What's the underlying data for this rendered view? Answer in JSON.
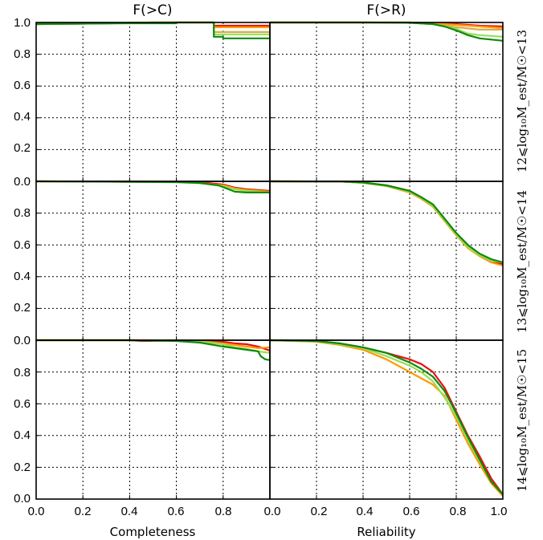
{
  "chart_data": {
    "type": "line",
    "columns": [
      {
        "title": "F(>C)",
        "xlabel": "Completeness"
      },
      {
        "title": "F(>R)",
        "xlabel": "Reliability"
      }
    ],
    "row_labels": [
      "12⩽log₁₀M_est/M☉<13",
      "13⩽log₁₀M_est/M☉<14",
      "14⩽log₁₀M_est/M☉<15"
    ],
    "xlim": [
      0,
      1
    ],
    "ylim": [
      0,
      1
    ],
    "x_ticks": [
      "0.0",
      "0.2",
      "0.4",
      "0.6",
      "0.8",
      "0.0",
      "0.2",
      "0.4",
      "0.6",
      "0.8",
      "1.0"
    ],
    "y_ticks": {
      "top": [
        "1.0",
        "0.8",
        "0.6",
        "0.4",
        "0.2"
      ],
      "middle": [
        "0.0",
        "0.8",
        "0.6",
        "0.4",
        "0.2"
      ],
      "bottom": [
        "0.0",
        "0.8",
        "0.6",
        "0.4",
        "0.2",
        "0.0"
      ]
    },
    "y_tick_values": [
      1.0,
      0.8,
      0.6,
      0.4,
      0.2,
      0.0
    ],
    "grid": true,
    "colors": [
      "#ff9900",
      "#e81010",
      "#99dd55",
      "#d4b04a",
      "#0e8a0e"
    ],
    "panels": [
      {
        "row": 0,
        "col": 0,
        "series": [
          {
            "color": "#e81010",
            "x": [
              0.0,
              0.22,
              0.5,
              0.76,
              0.76,
              1.0
            ],
            "y": [
              0.99,
              0.993,
              1.0,
              1.0,
              0.98,
              0.98
            ]
          },
          {
            "color": "#ff9900",
            "x": [
              0.0,
              0.22,
              0.5,
              0.76,
              0.76,
              1.0
            ],
            "y": [
              0.99,
              0.993,
              1.0,
              1.0,
              0.97,
              0.97
            ]
          },
          {
            "color": "#d4b04a",
            "x": [
              0.0,
              0.25,
              0.55,
              0.76,
              0.76,
              1.0
            ],
            "y": [
              0.99,
              0.995,
              1.0,
              1.0,
              0.94,
              0.94
            ]
          },
          {
            "color": "#99dd55",
            "x": [
              0.0,
              0.3,
              0.6,
              0.76,
              0.76,
              1.0
            ],
            "y": [
              0.99,
              0.995,
              1.0,
              1.0,
              0.925,
              0.925
            ]
          },
          {
            "color": "#0e8a0e",
            "x": [
              0.0,
              0.4,
              0.6,
              0.6,
              0.76,
              0.76,
              0.8,
              0.8,
              1.0
            ],
            "y": [
              0.99,
              0.995,
              0.995,
              1.0,
              1.0,
              0.91,
              0.91,
              0.9,
              0.9
            ]
          }
        ]
      },
      {
        "row": 0,
        "col": 1,
        "series": [
          {
            "color": "#e81010",
            "x": [
              0.0,
              0.4,
              0.6,
              0.7,
              0.8,
              0.9,
              1.0
            ],
            "y": [
              1.0,
              1.0,
              1.0,
              0.995,
              0.99,
              0.98,
              0.975
            ]
          },
          {
            "color": "#ff9900",
            "x": [
              0.0,
              0.4,
              0.6,
              0.7,
              0.8,
              0.9,
              1.0
            ],
            "y": [
              1.0,
              1.0,
              1.0,
              0.995,
              0.985,
              0.975,
              0.965
            ]
          },
          {
            "color": "#d4b04a",
            "x": [
              0.0,
              0.4,
              0.6,
              0.7,
              0.8,
              0.9,
              1.0
            ],
            "y": [
              1.0,
              1.0,
              0.998,
              0.99,
              0.97,
              0.955,
              0.955
            ]
          },
          {
            "color": "#99dd55",
            "x": [
              0.0,
              0.4,
              0.6,
              0.7,
              0.8,
              0.85,
              0.9,
              1.0
            ],
            "y": [
              1.0,
              1.0,
              0.998,
              0.99,
              0.96,
              0.93,
              0.92,
              0.91
            ]
          },
          {
            "color": "#0e8a0e",
            "x": [
              0.0,
              0.4,
              0.6,
              0.7,
              0.75,
              0.8,
              0.85,
              0.9,
              1.0
            ],
            "y": [
              1.0,
              1.0,
              0.998,
              0.99,
              0.975,
              0.95,
              0.92,
              0.9,
              0.885
            ]
          }
        ]
      },
      {
        "row": 1,
        "col": 0,
        "series": [
          {
            "color": "#e81010",
            "x": [
              0.0,
              0.3,
              0.6,
              0.7,
              0.8,
              0.85,
              0.9,
              1.0
            ],
            "y": [
              1.0,
              0.998,
              0.997,
              0.995,
              0.98,
              0.96,
              0.95,
              0.94
            ]
          },
          {
            "color": "#ff9900",
            "x": [
              0.0,
              0.3,
              0.6,
              0.7,
              0.8,
              0.85,
              0.9,
              1.0
            ],
            "y": [
              1.0,
              0.998,
              0.997,
              0.99,
              0.975,
              0.955,
              0.945,
              0.935
            ]
          },
          {
            "color": "#99dd55",
            "x": [
              0.0,
              0.3,
              0.6,
              0.7,
              0.8,
              0.85,
              0.9,
              1.0
            ],
            "y": [
              1.0,
              0.998,
              0.995,
              0.988,
              0.97,
              0.95,
              0.94,
              0.93
            ]
          },
          {
            "color": "#0e8a0e",
            "x": [
              0.0,
              0.3,
              0.6,
              0.7,
              0.78,
              0.85,
              0.9,
              1.0
            ],
            "y": [
              1.0,
              0.998,
              0.995,
              0.99,
              0.975,
              0.935,
              0.93,
              0.93
            ]
          }
        ]
      },
      {
        "row": 1,
        "col": 1,
        "series": [
          {
            "color": "#ff9900",
            "x": [
              0.0,
              0.3,
              0.4,
              0.5,
              0.6,
              0.65,
              0.7,
              0.75,
              0.8,
              0.85,
              0.9,
              0.95,
              1.0
            ],
            "y": [
              1.0,
              0.999,
              0.99,
              0.97,
              0.93,
              0.89,
              0.84,
              0.75,
              0.66,
              0.58,
              0.53,
              0.49,
              0.47
            ]
          },
          {
            "color": "#e81010",
            "x": [
              0.0,
              0.3,
              0.4,
              0.5,
              0.6,
              0.65,
              0.7,
              0.75,
              0.8,
              0.85,
              0.9,
              0.95,
              1.0
            ],
            "y": [
              1.0,
              0.999,
              0.992,
              0.975,
              0.94,
              0.9,
              0.85,
              0.76,
              0.67,
              0.59,
              0.535,
              0.5,
              0.48
            ]
          },
          {
            "color": "#99dd55",
            "x": [
              0.0,
              0.3,
              0.4,
              0.5,
              0.6,
              0.65,
              0.7,
              0.75,
              0.8,
              0.85,
              0.9,
              0.95,
              1.0
            ],
            "y": [
              1.0,
              0.999,
              0.99,
              0.97,
              0.935,
              0.895,
              0.845,
              0.755,
              0.665,
              0.585,
              0.535,
              0.5,
              0.49
            ]
          },
          {
            "color": "#0e8a0e",
            "x": [
              0.0,
              0.3,
              0.4,
              0.5,
              0.6,
              0.65,
              0.7,
              0.75,
              0.8,
              0.85,
              0.9,
              0.95,
              1.0
            ],
            "y": [
              1.0,
              0.999,
              0.993,
              0.975,
              0.94,
              0.9,
              0.855,
              0.765,
              0.675,
              0.6,
              0.545,
              0.51,
              0.49
            ]
          }
        ]
      },
      {
        "row": 2,
        "col": 0,
        "series": [
          {
            "color": "#e81010",
            "x": [
              0.0,
              0.4,
              0.45,
              0.6,
              0.7,
              0.8,
              0.85,
              0.9,
              0.95,
              1.0
            ],
            "y": [
              1.0,
              1.0,
              0.995,
              0.998,
              0.995,
              0.99,
              0.98,
              0.975,
              0.96,
              0.935
            ]
          },
          {
            "color": "#ff9900",
            "x": [
              0.0,
              0.4,
              0.6,
              0.7,
              0.8,
              0.85,
              0.9,
              0.95,
              1.0
            ],
            "y": [
              1.0,
              1.0,
              0.998,
              0.995,
              0.98,
              0.97,
              0.96,
              0.95,
              0.955
            ]
          },
          {
            "color": "#99dd55",
            "x": [
              0.0,
              0.4,
              0.6,
              0.7,
              0.8,
              0.85,
              0.9,
              0.95,
              1.0
            ],
            "y": [
              1.0,
              1.0,
              0.997,
              0.99,
              0.975,
              0.955,
              0.945,
              0.93,
              0.92
            ]
          },
          {
            "color": "#0e8a0e",
            "x": [
              0.0,
              0.4,
              0.6,
              0.7,
              0.8,
              0.85,
              0.9,
              0.95,
              0.96,
              0.98,
              1.0
            ],
            "y": [
              1.0,
              1.0,
              0.995,
              0.985,
              0.96,
              0.95,
              0.94,
              0.93,
              0.9,
              0.88,
              0.875
            ]
          }
        ]
      },
      {
        "row": 2,
        "col": 1,
        "series": [
          {
            "color": "#ff9900",
            "x": [
              0.0,
              0.2,
              0.3,
              0.4,
              0.5,
              0.6,
              0.65,
              0.7,
              0.75,
              0.8,
              0.85,
              0.9,
              0.95,
              1.0
            ],
            "y": [
              1.0,
              0.99,
              0.97,
              0.94,
              0.88,
              0.8,
              0.76,
              0.72,
              0.65,
              0.5,
              0.35,
              0.22,
              0.1,
              0.02
            ]
          },
          {
            "color": "#e81010",
            "x": [
              0.0,
              0.2,
              0.3,
              0.4,
              0.5,
              0.6,
              0.65,
              0.7,
              0.75,
              0.8,
              0.85,
              0.9,
              0.95,
              1.0
            ],
            "y": [
              1.0,
              0.995,
              0.98,
              0.955,
              0.92,
              0.88,
              0.85,
              0.8,
              0.7,
              0.55,
              0.4,
              0.27,
              0.13,
              0.03
            ]
          },
          {
            "color": "#99dd55",
            "x": [
              0.0,
              0.2,
              0.3,
              0.4,
              0.5,
              0.6,
              0.65,
              0.7,
              0.75,
              0.8,
              0.85,
              0.9,
              0.95,
              1.0
            ],
            "y": [
              1.0,
              0.992,
              0.975,
              0.95,
              0.9,
              0.84,
              0.8,
              0.74,
              0.64,
              0.52,
              0.37,
              0.24,
              0.11,
              0.03
            ]
          },
          {
            "color": "#0e8a0e",
            "x": [
              0.0,
              0.2,
              0.3,
              0.4,
              0.5,
              0.6,
              0.65,
              0.7,
              0.75,
              0.8,
              0.85,
              0.9,
              0.95,
              1.0
            ],
            "y": [
              1.0,
              0.995,
              0.98,
              0.955,
              0.92,
              0.86,
              0.82,
              0.77,
              0.68,
              0.54,
              0.39,
              0.25,
              0.11,
              0.03
            ]
          }
        ]
      }
    ]
  }
}
